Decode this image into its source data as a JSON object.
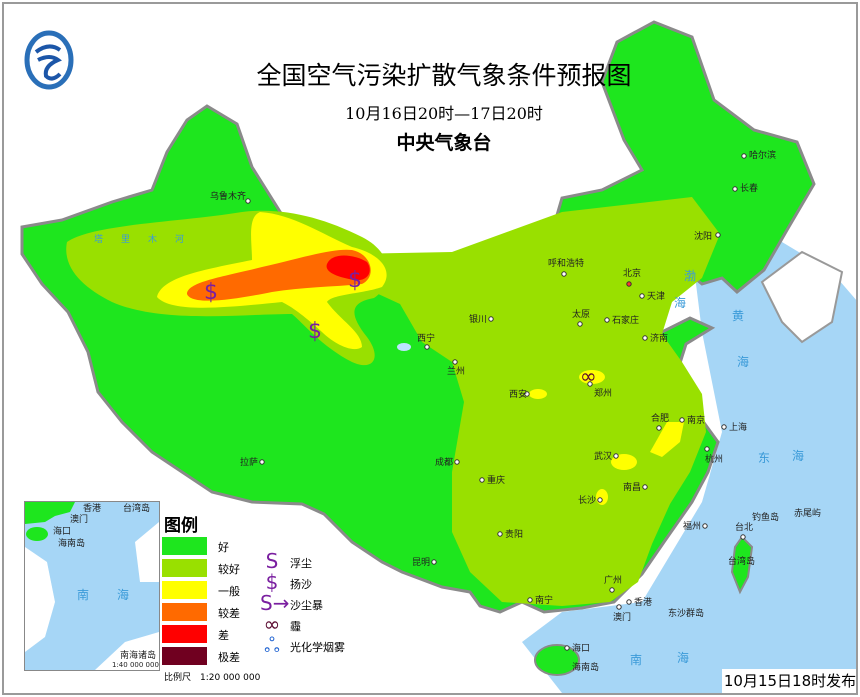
{
  "header": {
    "title": "全国空气污染扩散气象条件预报图",
    "period": "10月16日20时—17日20时",
    "agency": "中央气象台"
  },
  "colors": {
    "sea": "#a6d6f6",
    "good": "#1ee61e",
    "fairly_good": "#99e000",
    "moderate": "#ffff00",
    "fairly_poor": "#ff6a00",
    "poor": "#ff0000",
    "very_poor": "#700020",
    "dust_symbol": "#7a1fa0",
    "smog_symbol": "#1a5fd0"
  },
  "legend": {
    "title": "图例",
    "levels": [
      {
        "label": "好",
        "color": "#1ee61e"
      },
      {
        "label": "较好",
        "color": "#99e000"
      },
      {
        "label": "一般",
        "color": "#ffff00"
      },
      {
        "label": "较差",
        "color": "#ff6a00"
      },
      {
        "label": "差",
        "color": "#ff0000"
      },
      {
        "label": "极差",
        "color": "#700020"
      }
    ],
    "symbols": [
      {
        "icon": "floating-dust-icon",
        "glyph": "S",
        "label": "浮尘"
      },
      {
        "icon": "blowing-sand-icon",
        "glyph": "$",
        "label": "扬沙"
      },
      {
        "icon": "sandstorm-icon",
        "glyph": "S→",
        "label": "沙尘暴"
      },
      {
        "icon": "haze-icon",
        "glyph": "∞",
        "label": "霾"
      },
      {
        "icon": "photochemical-smog-icon",
        "glyph": "ஃ",
        "label": "光化学烟雾"
      }
    ],
    "scale": "比例尺　1:20 000 000"
  },
  "inset": {
    "title": "南海诸岛",
    "scale": "1:40 000 000",
    "labels": {
      "hongkong": "香港",
      "taiwan": "台湾岛",
      "macau": "澳门",
      "haikou": "海口",
      "hainan": "海南岛",
      "sea1": "南",
      "sea2": "海"
    }
  },
  "map": {
    "cities": {
      "urumqi": "乌鲁木齐",
      "harbin": "哈尔滨",
      "changchun": "长春",
      "shenyang": "沈阳",
      "hohhot": "呼和浩特",
      "beijing": "北京",
      "tianjin": "天津",
      "yinchuan": "银川",
      "taiyuan": "太原",
      "shijiazhuang": "石家庄",
      "jinan": "济南",
      "xining": "西宁",
      "lanzhou": "兰州",
      "xian": "西安",
      "zhengzhou": "郑州",
      "hefei": "合肥",
      "nanjing": "南京",
      "shanghai": "上海",
      "wuhan": "武汉",
      "hangzhou": "杭州",
      "changsha": "长沙",
      "nanchang": "南昌",
      "chengdu": "成都",
      "chongqing": "重庆",
      "guiyang": "贵阳",
      "kunming": "昆明",
      "lhasa": "拉萨",
      "fuzhou": "福州",
      "taipei": "台北",
      "guangzhou": "广州",
      "nanning": "南宁",
      "hongkong": "香港",
      "macau": "澳门",
      "haikou": "海口"
    },
    "places": {
      "hainan": "海南岛",
      "taiwan": "台湾岛",
      "dongsha": "东沙群岛",
      "diaoyu": "钓鱼岛",
      "chiwei": "赤尾屿",
      "tarim": "塔里木河"
    },
    "seas": {
      "bohai1": "渤",
      "bohai2": "海",
      "huang1": "黄",
      "huang2": "海",
      "dong1": "东",
      "dong2": "海",
      "nan1": "南",
      "nan2": "海"
    },
    "weather_symbols": [
      {
        "type": "blowing-sand",
        "glyph": "$"
      },
      {
        "type": "blowing-sand",
        "glyph": "$"
      },
      {
        "type": "blowing-sand",
        "glyph": "$"
      },
      {
        "type": "haze",
        "glyph": "∞"
      }
    ]
  },
  "footer": {
    "published": "10月15日18时发布"
  }
}
